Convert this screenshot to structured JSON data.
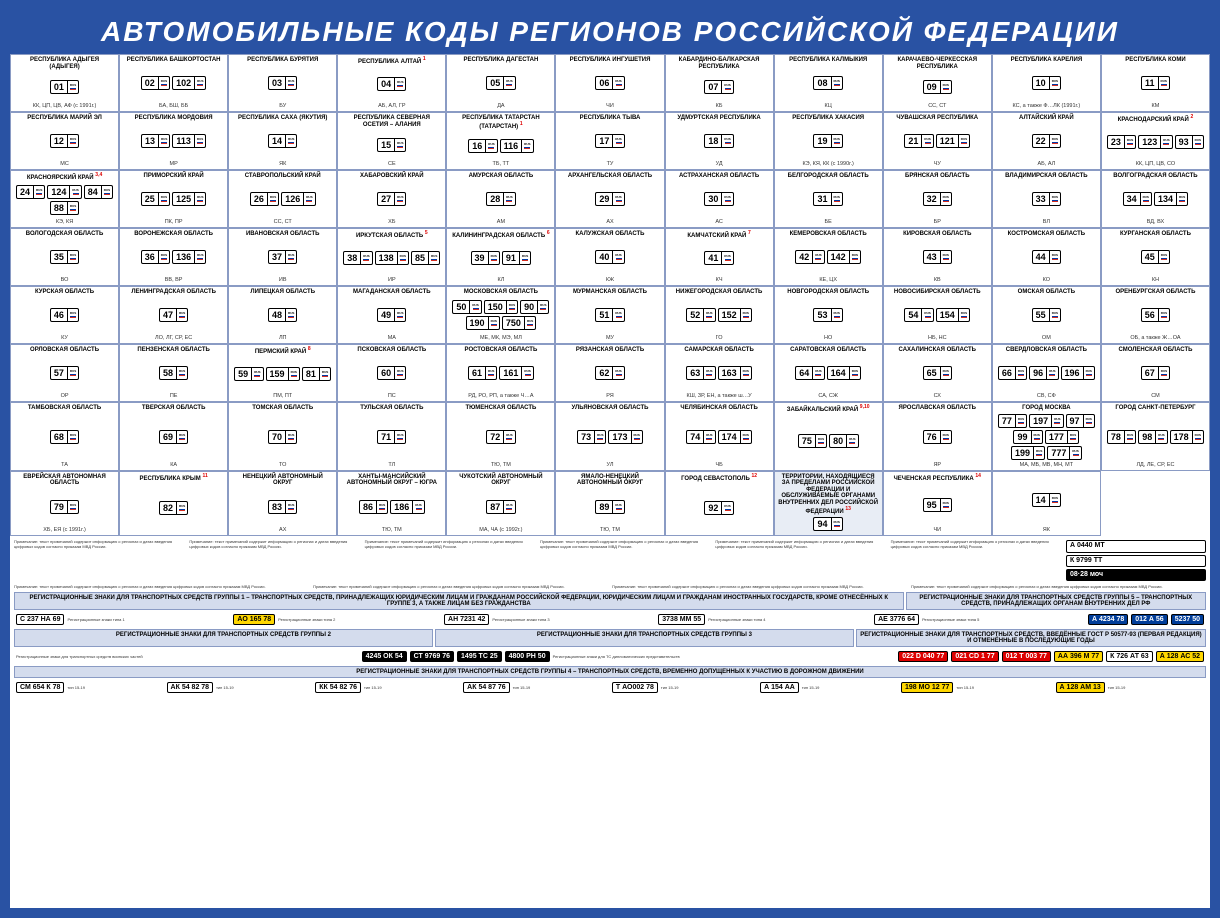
{
  "title": "АВТОМОБИЛЬНЫЕ КОДЫ РЕГИОНОВ РОССИЙСКОЙ ФЕДЕРАЦИИ",
  "colors": {
    "frame": "#2952a3",
    "border": "#8a9bc4",
    "section_bg": "#d4dced",
    "special_bg": "#e8edf5"
  },
  "regions": [
    {
      "name": "РЕСПУБЛИКА АДЫГЕЯ (АДЫГЕЯ)",
      "codes": [
        "01"
      ],
      "abbr": "КК, ЦП, ЦВ, АФ (с 1991г.)"
    },
    {
      "name": "РЕСПУБЛИКА БАШКОРТОСТАН",
      "codes": [
        "02",
        "102"
      ],
      "abbr": "БА, БШ, ББ"
    },
    {
      "name": "РЕСПУБЛИКА БУРЯТИЯ",
      "codes": [
        "03"
      ],
      "abbr": "БУ"
    },
    {
      "name": "РЕСПУБЛИКА АЛТАЙ",
      "codes": [
        "04"
      ],
      "abbr": "АБ, АЛ, ГР",
      "note": "1"
    },
    {
      "name": "РЕСПУБЛИКА ДАГЕСТАН",
      "codes": [
        "05"
      ],
      "abbr": "ДА"
    },
    {
      "name": "РЕСПУБЛИКА ИНГУШЕТИЯ",
      "codes": [
        "06"
      ],
      "abbr": "ЧИ"
    },
    {
      "name": "КАБАРДИНО-БАЛКАРСКАЯ РЕСПУБЛИКА",
      "codes": [
        "07"
      ],
      "abbr": "КБ"
    },
    {
      "name": "РЕСПУБЛИКА КАЛМЫКИЯ",
      "codes": [
        "08"
      ],
      "abbr": "КЦ"
    },
    {
      "name": "КАРАЧАЕВО-ЧЕРКЕССКАЯ РЕСПУБЛИКА",
      "codes": [
        "09"
      ],
      "abbr": "СС, СТ"
    },
    {
      "name": "РЕСПУБЛИКА КАРЕЛИЯ",
      "codes": [
        "10"
      ],
      "abbr": "КС, а также Ф…ЛК (1991г.)"
    },
    {
      "name": "РЕСПУБЛИКА КОМИ",
      "codes": [
        "11"
      ],
      "abbr": "КМ"
    },
    {
      "name": "РЕСПУБЛИКА МАРИЙ ЭЛ",
      "codes": [
        "12"
      ],
      "abbr": "МС"
    },
    {
      "name": "РЕСПУБЛИКА МОРДОВИЯ",
      "codes": [
        "13",
        "113"
      ],
      "abbr": "МР"
    },
    {
      "name": "РЕСПУБЛИКА САХА (ЯКУТИЯ)",
      "codes": [
        "14"
      ],
      "abbr": "ЯК"
    },
    {
      "name": "РЕСПУБЛИКА СЕВЕРНАЯ ОСЕТИЯ – АЛАНИЯ",
      "codes": [
        "15"
      ],
      "abbr": "СЕ"
    },
    {
      "name": "РЕСПУБЛИКА ТАТАРСТАН (ТАТАРСТАН)",
      "codes": [
        "16",
        "116"
      ],
      "abbr": "ТБ, ТТ",
      "note": "1"
    },
    {
      "name": "РЕСПУБЛИКА ТЫВА",
      "codes": [
        "17"
      ],
      "abbr": "ТУ"
    },
    {
      "name": "УДМУРТСКАЯ РЕСПУБЛИКА",
      "codes": [
        "18"
      ],
      "abbr": "УД"
    },
    {
      "name": "РЕСПУБЛИКА ХАКАСИЯ",
      "codes": [
        "19"
      ],
      "abbr": "КЭ, КЯ, КК (с 1990г.)"
    },
    {
      "name": "ЧУВАШСКАЯ РЕСПУБЛИКА",
      "codes": [
        "21",
        "121"
      ],
      "abbr": "ЧУ"
    },
    {
      "name": "АЛТАЙСКИЙ КРАЙ",
      "codes": [
        "22"
      ],
      "abbr": "АБ, АЛ"
    },
    {
      "name": "КРАСНОДАРСКИЙ КРАЙ",
      "codes": [
        "23",
        "123",
        "93"
      ],
      "abbr": "КК, ЦП, ЦВ, СО",
      "note": "2"
    },
    {
      "name": "КРАСНОЯРСКИЙ КРАЙ",
      "codes": [
        "24",
        "124",
        "84",
        "88"
      ],
      "abbr": "КЭ, КЯ",
      "note": "3,4"
    },
    {
      "name": "ПРИМОРСКИЙ КРАЙ",
      "codes": [
        "25",
        "125"
      ],
      "abbr": "ПК, ПР"
    },
    {
      "name": "СТАВРОПОЛЬСКИЙ КРАЙ",
      "codes": [
        "26",
        "126"
      ],
      "abbr": "СС, СТ"
    },
    {
      "name": "ХАБАРОВСКИЙ КРАЙ",
      "codes": [
        "27"
      ],
      "abbr": "ХБ"
    },
    {
      "name": "АМУРСКАЯ ОБЛАСТЬ",
      "codes": [
        "28"
      ],
      "abbr": "АМ"
    },
    {
      "name": "АРХАНГЕЛЬСКАЯ ОБЛАСТЬ",
      "codes": [
        "29"
      ],
      "abbr": "АХ"
    },
    {
      "name": "АСТРАХАНСКАЯ ОБЛАСТЬ",
      "codes": [
        "30"
      ],
      "abbr": "АС"
    },
    {
      "name": "БЕЛГОРОДСКАЯ ОБЛАСТЬ",
      "codes": [
        "31"
      ],
      "abbr": "БЕ"
    },
    {
      "name": "БРЯНСКАЯ ОБЛАСТЬ",
      "codes": [
        "32"
      ],
      "abbr": "БР"
    },
    {
      "name": "ВЛАДИМИРСКАЯ ОБЛАСТЬ",
      "codes": [
        "33"
      ],
      "abbr": "ВЛ"
    },
    {
      "name": "ВОЛГОГРАДСКАЯ ОБЛАСТЬ",
      "codes": [
        "34",
        "134"
      ],
      "abbr": "ВД, ВХ"
    },
    {
      "name": "ВОЛОГОДСКАЯ ОБЛАСТЬ",
      "codes": [
        "35"
      ],
      "abbr": "ВО"
    },
    {
      "name": "ВОРОНЕЖСКАЯ ОБЛАСТЬ",
      "codes": [
        "36",
        "136"
      ],
      "abbr": "ВВ, ВР"
    },
    {
      "name": "ИВАНОВСКАЯ ОБЛАСТЬ",
      "codes": [
        "37"
      ],
      "abbr": "ИВ"
    },
    {
      "name": "ИРКУТСКАЯ ОБЛАСТЬ",
      "codes": [
        "38",
        "138",
        "85"
      ],
      "abbr": "ИР",
      "note": "5"
    },
    {
      "name": "КАЛИНИНГРАДСКАЯ ОБЛАСТЬ",
      "codes": [
        "39",
        "91"
      ],
      "abbr": "КЛ",
      "note": "6"
    },
    {
      "name": "КАЛУЖСКАЯ ОБЛАСТЬ",
      "codes": [
        "40"
      ],
      "abbr": "КЖ"
    },
    {
      "name": "КАМЧАТСКИЙ КРАЙ",
      "codes": [
        "41"
      ],
      "abbr": "КЧ",
      "note": "7"
    },
    {
      "name": "КЕМЕРОВСКАЯ ОБЛАСТЬ",
      "codes": [
        "42",
        "142"
      ],
      "abbr": "КЕ, ЦХ"
    },
    {
      "name": "КИРОВСКАЯ ОБЛАСТЬ",
      "codes": [
        "43"
      ],
      "abbr": "КВ"
    },
    {
      "name": "КОСТРОМСКАЯ ОБЛАСТЬ",
      "codes": [
        "44"
      ],
      "abbr": "КО"
    },
    {
      "name": "КУРГАНСКАЯ ОБЛАСТЬ",
      "codes": [
        "45"
      ],
      "abbr": "КН"
    },
    {
      "name": "КУРСКАЯ ОБЛАСТЬ",
      "codes": [
        "46"
      ],
      "abbr": "КУ"
    },
    {
      "name": "ЛЕНИНГРАДСКАЯ ОБЛАСТЬ",
      "codes": [
        "47"
      ],
      "abbr": "ЛО, ЛГ, СР, ЕС"
    },
    {
      "name": "ЛИПЕЦКАЯ ОБЛАСТЬ",
      "codes": [
        "48"
      ],
      "abbr": "ЛП"
    },
    {
      "name": "МАГАДАНСКАЯ ОБЛАСТЬ",
      "codes": [
        "49"
      ],
      "abbr": "МА"
    },
    {
      "name": "МОСКОВСКАЯ ОБЛАСТЬ",
      "codes": [
        "50",
        "150",
        "90",
        "190",
        "750"
      ],
      "abbr": "МЕ, МК, МЭ, МЛ"
    },
    {
      "name": "МУРМАНСКАЯ ОБЛАСТЬ",
      "codes": [
        "51"
      ],
      "abbr": "МУ"
    },
    {
      "name": "НИЖЕГОРОДСКАЯ ОБЛАСТЬ",
      "codes": [
        "52",
        "152"
      ],
      "abbr": "ГО"
    },
    {
      "name": "НОВГОРОДСКАЯ ОБЛАСТЬ",
      "codes": [
        "53"
      ],
      "abbr": "НО"
    },
    {
      "name": "НОВОСИБИРСКАЯ ОБЛАСТЬ",
      "codes": [
        "54",
        "154"
      ],
      "abbr": "НБ, НС"
    },
    {
      "name": "ОМСКАЯ ОБЛАСТЬ",
      "codes": [
        "55"
      ],
      "abbr": "ОМ"
    },
    {
      "name": "ОРЕНБУРГСКАЯ ОБЛАСТЬ",
      "codes": [
        "56"
      ],
      "abbr": "ОБ, а также Ж…ОА"
    },
    {
      "name": "ОРЛОВСКАЯ ОБЛАСТЬ",
      "codes": [
        "57"
      ],
      "abbr": "ОР"
    },
    {
      "name": "ПЕНЗЕНСКАЯ ОБЛАСТЬ",
      "codes": [
        "58"
      ],
      "abbr": "ПЕ"
    },
    {
      "name": "ПЕРМСКИЙ КРАЙ",
      "codes": [
        "59",
        "159",
        "81"
      ],
      "abbr": "ПМ, ПТ",
      "note": "8"
    },
    {
      "name": "ПСКОВСКАЯ ОБЛАСТЬ",
      "codes": [
        "60"
      ],
      "abbr": "ПС"
    },
    {
      "name": "РОСТОВСКАЯ ОБЛАСТЬ",
      "codes": [
        "61",
        "161"
      ],
      "abbr": "РД, РО, РП, а также Ч…А"
    },
    {
      "name": "РЯЗАНСКАЯ ОБЛАСТЬ",
      "codes": [
        "62"
      ],
      "abbr": "РЯ"
    },
    {
      "name": "САМАРСКАЯ ОБЛАСТЬ",
      "codes": [
        "63",
        "163"
      ],
      "abbr": "КШ, ЗР, ЕН, а также ш…У"
    },
    {
      "name": "САРАТОВСКАЯ ОБЛАСТЬ",
      "codes": [
        "64",
        "164"
      ],
      "abbr": "СА, СЖ"
    },
    {
      "name": "САХАЛИНСКАЯ ОБЛАСТЬ",
      "codes": [
        "65"
      ],
      "abbr": "СХ"
    },
    {
      "name": "СВЕРДЛОВСКАЯ ОБЛАСТЬ",
      "codes": [
        "66",
        "96",
        "196"
      ],
      "abbr": "СВ, СФ"
    },
    {
      "name": "СМОЛЕНСКАЯ ОБЛАСТЬ",
      "codes": [
        "67"
      ],
      "abbr": "СМ"
    },
    {
      "name": "ТАМБОВСКАЯ ОБЛАСТЬ",
      "codes": [
        "68"
      ],
      "abbr": "ТА"
    },
    {
      "name": "ТВЕРСКАЯ ОБЛАСТЬ",
      "codes": [
        "69"
      ],
      "abbr": "КА"
    },
    {
      "name": "ТОМСКАЯ ОБЛАСТЬ",
      "codes": [
        "70"
      ],
      "abbr": "ТО"
    },
    {
      "name": "ТУЛЬСКАЯ ОБЛАСТЬ",
      "codes": [
        "71"
      ],
      "abbr": "ТЛ"
    },
    {
      "name": "ТЮМЕНСКАЯ ОБЛАСТЬ",
      "codes": [
        "72"
      ],
      "abbr": "ТЮ, ТМ"
    },
    {
      "name": "УЛЬЯНОВСКАЯ ОБЛАСТЬ",
      "codes": [
        "73",
        "173"
      ],
      "abbr": "УЛ"
    },
    {
      "name": "ЧЕЛЯБИНСКАЯ ОБЛАСТЬ",
      "codes": [
        "74",
        "174"
      ],
      "abbr": "ЧБ"
    },
    {
      "name": "ЗАБАЙКАЛЬСКИЙ КРАЙ",
      "codes": [
        "75",
        "80"
      ],
      "abbr": "",
      "note": "9,10"
    },
    {
      "name": "ЯРОСЛАВСКАЯ ОБЛАСТЬ",
      "codes": [
        "76"
      ],
      "abbr": "ЯР"
    },
    {
      "name": "ГОРОД МОСКВА",
      "codes": [
        "77",
        "197",
        "97",
        "99",
        "177",
        "199",
        "777"
      ],
      "abbr": "МА, МБ, МВ, МН, МТ"
    },
    {
      "name": "ГОРОД САНКТ-ПЕТЕРБУРГ",
      "codes": [
        "78",
        "98",
        "178"
      ],
      "abbr": "ЛД, ЛЕ, СР, ЕС"
    },
    {
      "name": "ЕВРЕЙСКАЯ АВТОНОМНАЯ ОБЛАСТЬ",
      "codes": [
        "79"
      ],
      "abbr": "ХБ, ЕЯ (с 1991г.)"
    },
    {
      "name": "РЕСПУБЛИКА КРЫМ",
      "codes": [
        "82"
      ],
      "abbr": "",
      "note": "11"
    },
    {
      "name": "НЕНЕЦКИЙ АВТОНОМНЫЙ ОКРУГ",
      "codes": [
        "83"
      ],
      "abbr": "АХ"
    },
    {
      "name": "ХАНТЫ-МАНСИЙСКИЙ АВТОНОМНЫЙ ОКРУГ – ЮГРА",
      "codes": [
        "86",
        "186"
      ],
      "abbr": "ТЮ, ТМ"
    },
    {
      "name": "ЧУКОТСКИЙ АВТОНОМНЫЙ ОКРУГ",
      "codes": [
        "87"
      ],
      "abbr": "МА, ЧА (с 1992г.)"
    },
    {
      "name": "ЯМАЛО-НЕНЕЦКИЙ АВТОНОМНЫЙ ОКРУГ",
      "codes": [
        "89"
      ],
      "abbr": "ТЮ, ТМ"
    },
    {
      "name": "ГОРОД СЕВАСТОПОЛЬ",
      "codes": [
        "92"
      ],
      "abbr": "",
      "note": "12"
    },
    {
      "name": "ТЕРРИТОРИИ, НАХОДЯЩИЕСЯ ЗА ПРЕДЕЛАМИ РОССИЙСКОЙ ФЕДЕРАЦИИ И ОБСЛУЖИВАЕМЫЕ ОРГАНАМИ ВНУТРЕННИХ ДЕЛ РОССИЙСКОЙ ФЕДЕРАЦИИ",
      "codes": [
        "94"
      ],
      "abbr": "",
      "special": true,
      "note": "13"
    },
    {
      "name": "ЧЕЧЕНСКАЯ РЕСПУБЛИКА",
      "codes": [
        "95"
      ],
      "abbr": "ЧИ",
      "note": "14"
    },
    {
      "name": "",
      "codes": [
        "14"
      ],
      "abbr": "ЯК",
      "blank_name": true
    }
  ],
  "sections": [
    {
      "title": "РЕГИСТРАЦИОННЫЕ ЗНАКИ ДЛЯ ТРАНСПОРТНЫХ СРЕДСТВ ГРУППЫ 1 – ТРАНСПОРТНЫХ СРЕДСТВ, ПРИНАДЛЕЖАЩИХ ЮРИДИЧЕСКИМ ЛИЦАМ И ГРАЖДАНАМ РОССИЙСКОЙ ФЕДЕРАЦИИ, ЮРИДИЧЕСКИМ ЛИЦАМ И ГРАЖДАНАМ ИНОСТРАННЫХ ГОСУДАРСТВ, КРОМЕ ОТНЕСЁННЫХ К ГРУППЕ 3, А ТАКЖЕ ЛИЦАМ БЕЗ ГРАЖДАНСТВА"
    },
    {
      "title": "РЕГИСТРАЦИОННЫЕ ЗНАКИ ДЛЯ ТРАНСПОРТНЫХ СРЕДСТВ ГРУППЫ 5 – ТРАНСПОРТНЫХ СРЕДСТВ, ПРИНАДЛЕЖАЩИХ ОРГАНАМ ВНУТРЕННИХ ДЕЛ РФ"
    },
    {
      "title": "РЕГИСТРАЦИОННЫЕ ЗНАКИ ДЛЯ ТРАНСПОРТНЫХ СРЕДСТВ ГРУППЫ 2"
    },
    {
      "title": "РЕГИСТРАЦИОННЫЕ ЗНАКИ ДЛЯ ТРАНСПОРТНЫХ СРЕДСТВ ГРУППЫ 3"
    },
    {
      "title": "РЕГИСТРАЦИОННЫЕ ЗНАКИ ДЛЯ ТРАНСПОРТНЫХ СРЕДСТВ, ВВЕДЁННЫЕ ГОСТ Р 50577-93 (ПЕРВАЯ РЕДАКЦИЯ) И ОТМЕНЁННЫЕ В ПОСЛЕДУЮЩИЕ ГОДЫ"
    },
    {
      "title": "РЕГИСТРАЦИОННЫЕ ЗНАКИ ДЛЯ ТРАНСПОРТНЫХ СРЕДСТВ ГРУППЫ 4 – ТРАНСПОРТНЫХ СРЕДСТВ, ВРЕМЕННО ДОПУЩЕННЫХ К УЧАСТИЮ В ДОРОЖНОМ ДВИЖЕНИИ"
    }
  ],
  "example_plates": [
    {
      "text": "С 237 НА 69",
      "cls": "ex-white"
    },
    {
      "text": "АО 165 78",
      "cls": "ex-yellow"
    },
    {
      "text": "АН 7231 42",
      "cls": "ex-white"
    },
    {
      "text": "3738 ММ 55",
      "cls": "ex-white"
    },
    {
      "text": "АЕ 3776 64",
      "cls": "ex-white"
    },
    {
      "text": "А 0440 МТ",
      "cls": "ex-white"
    },
    {
      "text": "К 9799 ТТ",
      "cls": "ex-white"
    },
    {
      "text": "08·28 моч",
      "cls": "ex-black"
    },
    {
      "text": "А 4234 78",
      "cls": "ex-blue"
    },
    {
      "text": "012 А 56",
      "cls": "ex-blue"
    },
    {
      "text": "5237 50",
      "cls": "ex-blue"
    },
    {
      "text": "4245 ОК 54",
      "cls": "ex-black"
    },
    {
      "text": "СТ 9769 76",
      "cls": "ex-black"
    },
    {
      "text": "1495 ТС 25",
      "cls": "ex-black"
    },
    {
      "text": "4800 РН 50",
      "cls": "ex-black"
    },
    {
      "text": "022 D 040 77",
      "cls": "ex-red"
    },
    {
      "text": "021 CD 1 77",
      "cls": "ex-red"
    },
    {
      "text": "012 T 003 77",
      "cls": "ex-red"
    },
    {
      "text": "АА 396 М 77",
      "cls": "ex-yellow"
    },
    {
      "text": "К 726 АТ 63",
      "cls": "ex-white"
    },
    {
      "text": "А 128 АС 52",
      "cls": "ex-yellow"
    },
    {
      "text": "СМ 654 К 78",
      "cls": "ex-white"
    },
    {
      "text": "АК 54 82 78",
      "cls": "ex-white"
    },
    {
      "text": "КК 54 82 76",
      "cls": "ex-white"
    },
    {
      "text": "АК 54 87 76",
      "cls": "ex-white"
    },
    {
      "text": "Т АО002 78",
      "cls": "ex-white"
    },
    {
      "text": "А 154 АА",
      "cls": "ex-white"
    },
    {
      "text": "198 МО 12 77",
      "cls": "ex-yellow"
    },
    {
      "text": "А 128 АМ 13",
      "cls": "ex-yellow"
    }
  ],
  "note_text": "Примечание: текст примечаний содержит информацию о регионах и датах введения цифровых кодов согласно приказам МВД России."
}
